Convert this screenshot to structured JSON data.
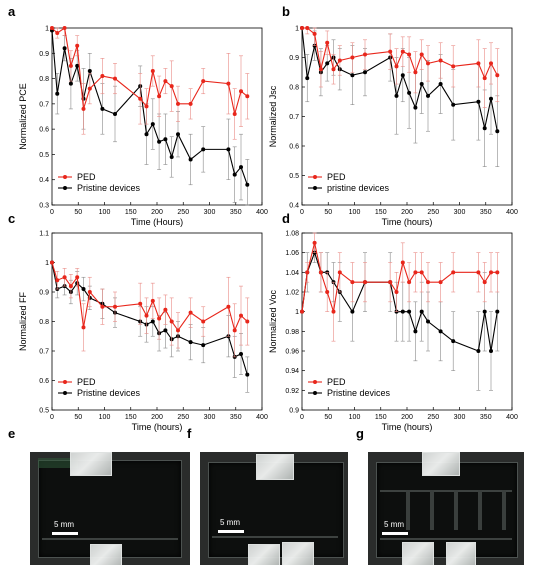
{
  "colors": {
    "ped": "#e8261b",
    "pristine": "#000000",
    "ped_err": "#e98b86",
    "pristine_err": "#8a8a8a"
  },
  "chart_data": [
    {
      "type": "line",
      "panel": "a",
      "xlabel": "Time (Hours)",
      "ylabel": "Normalized PCE",
      "xlim": [
        0,
        400
      ],
      "ylim": [
        0.3,
        1.0
      ],
      "xticks": [
        0,
        50,
        100,
        150,
        200,
        250,
        300,
        350,
        400
      ],
      "yticks": [
        0.3,
        0.4,
        0.5,
        0.6,
        0.7,
        0.8,
        0.9,
        1.0
      ],
      "ytick_labels": [
        "0.3",
        "0.4",
        "0.5",
        "0.6",
        "0.7",
        "0.8",
        "0.9",
        "1"
      ],
      "legend": [
        "PED",
        "Pristine devices"
      ],
      "legend_position": "bottom-left",
      "series": [
        {
          "name": "PED",
          "x": [
            0,
            10,
            24,
            36,
            48,
            60,
            72,
            96,
            120,
            168,
            180,
            192,
            204,
            216,
            228,
            240,
            264,
            288,
            336,
            348,
            360,
            372
          ],
          "y": [
            1.0,
            0.98,
            1.0,
            0.85,
            0.93,
            0.68,
            0.76,
            0.81,
            0.8,
            0.72,
            0.69,
            0.83,
            0.73,
            0.79,
            0.77,
            0.7,
            0.7,
            0.79,
            0.78,
            0.66,
            0.75,
            0.73
          ],
          "err": [
            0,
            0.02,
            0.03,
            0.06,
            0.04,
            0.1,
            0.06,
            0.07,
            0.06,
            0.1,
            0.07,
            0.06,
            0.08,
            0.05,
            0.1,
            0.07,
            0.06,
            0.05,
            0.12,
            0.1,
            0.14,
            0.09
          ]
        },
        {
          "name": "Pristine devices",
          "x": [
            0,
            10,
            24,
            36,
            48,
            60,
            72,
            96,
            120,
            168,
            180,
            192,
            204,
            216,
            228,
            240,
            264,
            288,
            336,
            348,
            360,
            372
          ],
          "y": [
            0.99,
            0.74,
            0.92,
            0.78,
            0.85,
            0.72,
            0.83,
            0.68,
            0.66,
            0.77,
            0.58,
            0.62,
            0.55,
            0.56,
            0.49,
            0.58,
            0.48,
            0.52,
            0.52,
            0.42,
            0.45,
            0.38
          ],
          "err": [
            0,
            0.08,
            0.05,
            0.1,
            0.06,
            0.12,
            0.07,
            0.1,
            0.11,
            0.08,
            0.12,
            0.1,
            0.11,
            0.1,
            0.08,
            0.09,
            0.1,
            0.09,
            0.12,
            0.11,
            0.13,
            0.1
          ]
        }
      ]
    },
    {
      "type": "line",
      "panel": "b",
      "xlabel": "Time (hours)",
      "ylabel": "Normalized Jsc",
      "xlim": [
        0,
        400
      ],
      "ylim": [
        0.4,
        1.0
      ],
      "xticks": [
        0,
        50,
        100,
        150,
        200,
        250,
        300,
        350,
        400
      ],
      "yticks": [
        0.4,
        0.5,
        0.6,
        0.7,
        0.8,
        0.9,
        1.0
      ],
      "ytick_labels": [
        "0.4",
        "0.5",
        "0.6",
        "0.7",
        "0.8",
        "0.9",
        "1"
      ],
      "legend": [
        "PED",
        "pristine devices"
      ],
      "legend_position": "bottom-left",
      "series": [
        {
          "name": "PED",
          "x": [
            0,
            10,
            24,
            36,
            48,
            60,
            72,
            96,
            120,
            168,
            180,
            192,
            204,
            216,
            228,
            240,
            264,
            288,
            336,
            348,
            360,
            372
          ],
          "y": [
            1.0,
            1.0,
            0.98,
            0.86,
            0.95,
            0.86,
            0.89,
            0.9,
            0.91,
            0.92,
            0.87,
            0.92,
            0.91,
            0.85,
            0.91,
            0.88,
            0.89,
            0.87,
            0.88,
            0.83,
            0.88,
            0.84
          ],
          "err": [
            0,
            0.02,
            0.04,
            0.06,
            0.04,
            0.05,
            0.05,
            0.05,
            0.05,
            0.06,
            0.06,
            0.05,
            0.06,
            0.07,
            0.05,
            0.06,
            0.06,
            0.07,
            0.08,
            0.1,
            0.07,
            0.09
          ]
        },
        {
          "name": "pristine devices",
          "x": [
            0,
            10,
            24,
            36,
            48,
            60,
            72,
            96,
            120,
            168,
            180,
            192,
            204,
            216,
            228,
            240,
            264,
            288,
            336,
            348,
            360,
            372
          ],
          "y": [
            1.0,
            0.83,
            0.94,
            0.85,
            0.88,
            0.9,
            0.86,
            0.84,
            0.85,
            0.9,
            0.77,
            0.84,
            0.78,
            0.73,
            0.81,
            0.77,
            0.81,
            0.74,
            0.75,
            0.66,
            0.76,
            0.65
          ],
          "err": [
            0,
            0.08,
            0.05,
            0.08,
            0.06,
            0.06,
            0.07,
            0.1,
            0.08,
            0.08,
            0.13,
            0.09,
            0.12,
            0.12,
            0.1,
            0.12,
            0.1,
            0.12,
            0.13,
            0.13,
            0.12,
            0.12
          ]
        }
      ]
    },
    {
      "type": "line",
      "panel": "c",
      "xlabel": "Time (hours)",
      "ylabel": "Normalized FF",
      "xlim": [
        0,
        400
      ],
      "ylim": [
        0.5,
        1.1
      ],
      "xticks": [
        0,
        50,
        100,
        150,
        200,
        250,
        300,
        350,
        400
      ],
      "yticks": [
        0.5,
        0.6,
        0.7,
        0.8,
        0.9,
        1.0,
        1.1
      ],
      "ytick_labels": [
        "0.5",
        "0.6",
        "0.7",
        "0.8",
        "0.9",
        "1",
        "1.1"
      ],
      "legend": [
        "PED",
        "Pristine devices"
      ],
      "legend_position": "bottom-left",
      "series": [
        {
          "name": "PED",
          "x": [
            0,
            10,
            24,
            36,
            48,
            60,
            72,
            96,
            120,
            168,
            180,
            192,
            204,
            216,
            228,
            240,
            264,
            288,
            336,
            348,
            360,
            372
          ],
          "y": [
            1.0,
            0.94,
            0.95,
            0.92,
            0.95,
            0.78,
            0.9,
            0.85,
            0.85,
            0.86,
            0.82,
            0.87,
            0.81,
            0.84,
            0.8,
            0.77,
            0.83,
            0.8,
            0.85,
            0.77,
            0.82,
            0.8
          ],
          "err": [
            0,
            0.03,
            0.03,
            0.04,
            0.03,
            0.08,
            0.05,
            0.06,
            0.05,
            0.07,
            0.06,
            0.06,
            0.07,
            0.05,
            0.08,
            0.06,
            0.05,
            0.05,
            0.1,
            0.09,
            0.1,
            0.08
          ]
        },
        {
          "name": "Pristine devices",
          "x": [
            0,
            10,
            24,
            36,
            48,
            60,
            72,
            96,
            120,
            168,
            180,
            192,
            204,
            216,
            228,
            240,
            264,
            288,
            336,
            348,
            360,
            372
          ],
          "y": [
            1.0,
            0.91,
            0.92,
            0.9,
            0.93,
            0.91,
            0.88,
            0.86,
            0.83,
            0.8,
            0.79,
            0.8,
            0.76,
            0.77,
            0.74,
            0.75,
            0.73,
            0.72,
            0.75,
            0.68,
            0.69,
            0.62
          ],
          "err": [
            0,
            0.03,
            0.03,
            0.04,
            0.04,
            0.04,
            0.04,
            0.05,
            0.05,
            0.05,
            0.06,
            0.05,
            0.06,
            0.06,
            0.06,
            0.05,
            0.06,
            0.06,
            0.07,
            0.07,
            0.07,
            0.06
          ]
        }
      ]
    },
    {
      "type": "line",
      "panel": "d",
      "xlabel": "Time (hours)",
      "ylabel": "Normalized Voc",
      "xlim": [
        0,
        400
      ],
      "ylim": [
        0.9,
        1.08
      ],
      "xticks": [
        0,
        50,
        100,
        150,
        200,
        250,
        300,
        350,
        400
      ],
      "yticks": [
        0.9,
        0.92,
        0.94,
        0.96,
        0.98,
        1.0,
        1.02,
        1.04,
        1.06,
        1.08
      ],
      "ytick_labels": [
        "0.9",
        "0.92",
        "0.94",
        "0.96",
        "0.98",
        "1",
        "1.02",
        "1.04",
        "1.06",
        "1.08"
      ],
      "legend": [
        "PED",
        "Pristine devices"
      ],
      "legend_position": "bottom-left",
      "series": [
        {
          "name": "PED",
          "x": [
            0,
            10,
            24,
            36,
            48,
            60,
            72,
            96,
            120,
            168,
            180,
            192,
            204,
            216,
            228,
            240,
            264,
            288,
            336,
            348,
            360,
            372
          ],
          "y": [
            1.0,
            1.04,
            1.07,
            1.04,
            1.02,
            1.0,
            1.04,
            1.03,
            1.03,
            1.03,
            1.02,
            1.05,
            1.03,
            1.04,
            1.04,
            1.03,
            1.03,
            1.04,
            1.04,
            1.03,
            1.04,
            1.04
          ],
          "err": [
            0,
            0.01,
            0.01,
            0.02,
            0.02,
            0.03,
            0.02,
            0.02,
            0.02,
            0.02,
            0.02,
            0.02,
            0.02,
            0.02,
            0.02,
            0.02,
            0.02,
            0.02,
            0.02,
            0.02,
            0.02,
            0.02
          ]
        },
        {
          "name": "Pristine devices",
          "x": [
            0,
            10,
            24,
            36,
            48,
            60,
            72,
            96,
            120,
            168,
            180,
            192,
            204,
            216,
            228,
            240,
            264,
            288,
            336,
            348,
            360,
            372
          ],
          "y": [
            1.0,
            1.04,
            1.06,
            1.04,
            1.04,
            1.03,
            1.02,
            1.0,
            1.03,
            1.03,
            1.0,
            1.0,
            1.0,
            0.98,
            1.0,
            0.99,
            0.98,
            0.97,
            0.96,
            1.0,
            0.96,
            1.0
          ],
          "err": [
            0,
            0.02,
            0.01,
            0.02,
            0.02,
            0.02,
            0.03,
            0.03,
            0.03,
            0.03,
            0.03,
            0.03,
            0.03,
            0.03,
            0.03,
            0.03,
            0.03,
            0.03,
            0.04,
            0.04,
            0.04,
            0.04
          ]
        }
      ]
    }
  ],
  "photos": [
    {
      "label": "e",
      "scale_label": "5 mm"
    },
    {
      "label": "f",
      "scale_label": "5 mm"
    },
    {
      "label": "g",
      "scale_label": "5 mm"
    }
  ]
}
